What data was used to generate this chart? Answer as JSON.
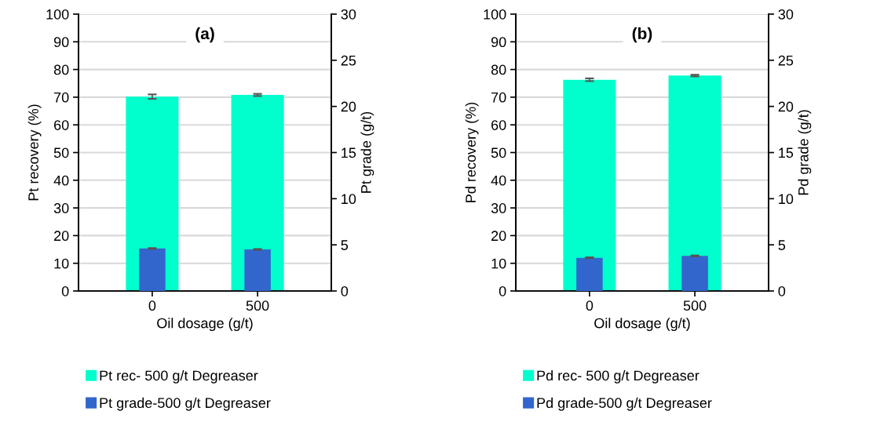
{
  "chart_data": [
    {
      "type": "bar",
      "title": "(a)",
      "xlabel": "Oil dosage (g/t)",
      "ylabel": "Pt recovery (%)",
      "y2label": "Pt grade (g/t)",
      "categories": [
        "0",
        "500"
      ],
      "series": [
        {
          "name": "Pt rec- 500 g/t Degreaser",
          "color": "#00ffcc",
          "values": [
            70.2,
            70.8
          ],
          "errors": [
            0.8,
            0.4
          ]
        },
        {
          "name": "Pt grade-500 g/t Degreaser",
          "color": "#3366cc",
          "values": [
            4.6,
            4.5
          ],
          "errors": [
            0.05,
            0.05
          ],
          "axis": "y2"
        }
      ],
      "ylim": [
        0,
        100
      ],
      "yticks": [
        0,
        10,
        20,
        30,
        40,
        50,
        60,
        70,
        80,
        90,
        100
      ],
      "y2lim": [
        0,
        30
      ],
      "y2ticks": [
        0,
        5,
        10,
        15,
        20,
        25,
        30
      ],
      "grid": "y",
      "legend": "bottom"
    },
    {
      "type": "bar",
      "title": "(b)",
      "xlabel": "Oil dosage (g/t)",
      "ylabel": "Pd recovery (%)",
      "y2label": "Pd grade (g/t)",
      "categories": [
        "0",
        "500"
      ],
      "series": [
        {
          "name": "Pd rec- 500 g/t Degreaser",
          "color": "#00ffcc",
          "values": [
            76.3,
            77.8
          ],
          "errors": [
            0.5,
            0.3
          ]
        },
        {
          "name": "Pd grade-500 g/t Degreaser",
          "color": "#3366cc",
          "values": [
            3.6,
            3.8
          ],
          "errors": [
            0.05,
            0.05
          ],
          "axis": "y2"
        }
      ],
      "ylim": [
        0,
        100
      ],
      "yticks": [
        0,
        10,
        20,
        30,
        40,
        50,
        60,
        70,
        80,
        90,
        100
      ],
      "y2lim": [
        0,
        30
      ],
      "y2ticks": [
        0,
        5,
        10,
        15,
        20,
        25,
        30
      ],
      "grid": "y",
      "legend": "bottom"
    }
  ]
}
